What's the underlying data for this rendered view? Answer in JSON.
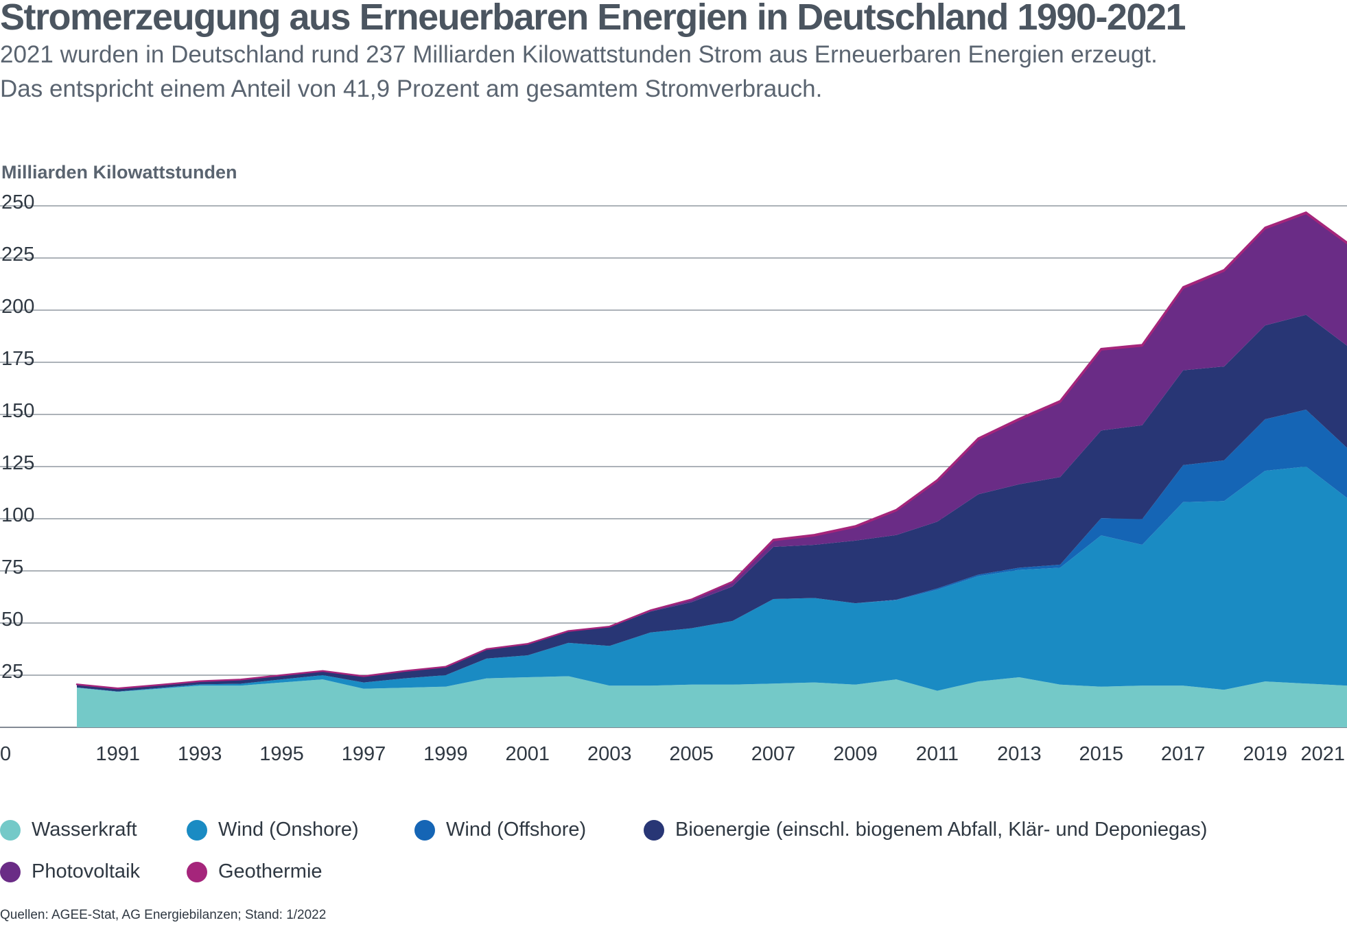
{
  "title": "Stromerzeugung aus Erneuerbaren Energien in Deutschland 1990-2021",
  "subtitle_line1": "2021 wurden in Deutschland rund 237 Milliarden Kilowattstunden Strom aus Erneuerbaren Energien erzeugt.",
  "subtitle_line2": "Das entspricht einem Anteil von 41,9 Prozent am gesamtem Stromverbrauch.",
  "source": "Quellen: AGEE-Stat, AG Energiebilanzen; Stand: 1/2022",
  "chart_data": {
    "type": "area",
    "stacked": true,
    "ylabel": "Milliarden Kilowattstunden",
    "ylim": [
      0,
      260
    ],
    "yticks": [
      0,
      25,
      50,
      75,
      100,
      125,
      150,
      175,
      200,
      225,
      250
    ],
    "xlim": [
      1990,
      2021
    ],
    "xticks": [
      "1991",
      "1993",
      "1995",
      "1997",
      "1999",
      "2001",
      "2003",
      "2005",
      "2007",
      "2009",
      "2011",
      "2013",
      "2015",
      "2017",
      "2019",
      "2021"
    ],
    "x": [
      1990,
      1991,
      1992,
      1993,
      1994,
      1995,
      1996,
      1997,
      1998,
      1999,
      2000,
      2001,
      2002,
      2003,
      2004,
      2005,
      2006,
      2007,
      2008,
      2009,
      2010,
      2011,
      2012,
      2013,
      2014,
      2015,
      2016,
      2017,
      2018,
      2019,
      2020,
      2021
    ],
    "grid": true,
    "legend_position": "bottom",
    "series": [
      {
        "name": "Wasserkraft",
        "color": "#74c9c8",
        "values": [
          19,
          17,
          18.5,
          20,
          20,
          21.5,
          23,
          18.5,
          19,
          19.5,
          23.5,
          24,
          24.5,
          20,
          20,
          20.5,
          20.5,
          21,
          21.5,
          20.5,
          23,
          17.5,
          22,
          24,
          20.5,
          19.5,
          20,
          20,
          18,
          22,
          21,
          20
        ]
      },
      {
        "name": "Wind (Onshore)",
        "color": "#1a8bc3",
        "values": [
          0.1,
          0.2,
          0.3,
          0.6,
          0.9,
          1.5,
          2,
          3,
          4.5,
          5.5,
          9.5,
          10.5,
          16,
          19,
          25.5,
          27,
          30.5,
          40.5,
          40.5,
          39,
          38,
          48.5,
          50.5,
          51.5,
          56,
          72.5,
          67.5,
          88,
          90.5,
          101,
          104,
          90
        ]
      },
      {
        "name": "Wind (Offshore)",
        "color": "#1565b5",
        "values": [
          0,
          0,
          0,
          0,
          0,
          0,
          0,
          0,
          0,
          0,
          0,
          0,
          0,
          0,
          0,
          0,
          0,
          0,
          0,
          0,
          0.2,
          0.6,
          0.7,
          1,
          1.5,
          8.3,
          12.3,
          17.7,
          19.5,
          24.7,
          27.3,
          24
        ]
      },
      {
        "name": "Bioenergie (einschl. biogenem Abfall, Klär- und Deponiegas)",
        "color": "#283675",
        "values": [
          1.5,
          1.5,
          1.5,
          1.5,
          2,
          2,
          2,
          3,
          3.5,
          4,
          4.5,
          5.5,
          5.5,
          9,
          10,
          12.5,
          16.5,
          25,
          25.5,
          30,
          31,
          32,
          38.5,
          40,
          42,
          42,
          45,
          45.5,
          45,
          45,
          45.5,
          49
        ]
      },
      {
        "name": "Photovoltaik",
        "color": "#6a2c86",
        "values": [
          0,
          0,
          0,
          0,
          0,
          0,
          0,
          0,
          0,
          0,
          0,
          0,
          0.2,
          0.3,
          0.6,
          1.3,
          2.2,
          3.1,
          4.4,
          6.6,
          11.7,
          19.6,
          26.4,
          31,
          36,
          38.7,
          38.1,
          39.4,
          45.8,
          46.4,
          48.6,
          49
        ]
      },
      {
        "name": "Geothermie",
        "color": "#a5257b",
        "values": [
          0,
          0,
          0,
          0,
          0,
          0,
          0,
          0,
          0,
          0,
          0,
          0,
          0,
          0,
          0,
          0,
          0.1,
          0.4,
          0.4,
          0.4,
          0.4,
          0.4,
          0.5,
          0.5,
          0.5,
          0.5,
          0.5,
          0.5,
          0.5,
          0.5,
          0.5,
          0.5
        ]
      }
    ]
  }
}
